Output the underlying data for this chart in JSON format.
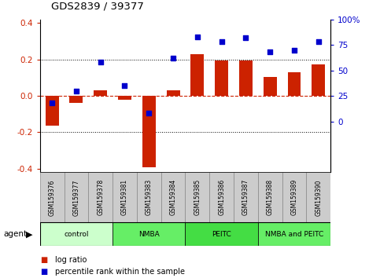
{
  "title": "GDS2839 / 39377",
  "samples": [
    "GSM159376",
    "GSM159377",
    "GSM159378",
    "GSM159381",
    "GSM159383",
    "GSM159384",
    "GSM159385",
    "GSM159386",
    "GSM159387",
    "GSM159388",
    "GSM159389",
    "GSM159390"
  ],
  "log_ratio": [
    -0.165,
    -0.04,
    0.03,
    -0.02,
    -0.39,
    0.03,
    0.23,
    0.195,
    0.195,
    0.105,
    0.13,
    0.175
  ],
  "percentile_rank": [
    18,
    30,
    58,
    35,
    8,
    62,
    83,
    78,
    82,
    68,
    70,
    78
  ],
  "bar_color": "#cc2200",
  "dot_color": "#0000cc",
  "zero_line_color": "#cc2200",
  "ylim_left": [
    -0.42,
    0.42
  ],
  "yticks_left": [
    -0.4,
    -0.2,
    0.0,
    0.2,
    0.4
  ],
  "yticks_right": [
    0,
    25,
    50,
    75,
    100
  ],
  "groups": [
    {
      "label": "control",
      "start": 0,
      "end": 3,
      "color": "#ccffcc"
    },
    {
      "label": "NMBA",
      "start": 3,
      "end": 6,
      "color": "#66ee66"
    },
    {
      "label": "PEITC",
      "start": 6,
      "end": 9,
      "color": "#44dd44"
    },
    {
      "label": "NMBA and PEITC",
      "start": 9,
      "end": 12,
      "color": "#66ee66"
    }
  ],
  "legend_bar_label": "log ratio",
  "legend_dot_label": "percentile rank within the sample",
  "agent_label": "agent"
}
